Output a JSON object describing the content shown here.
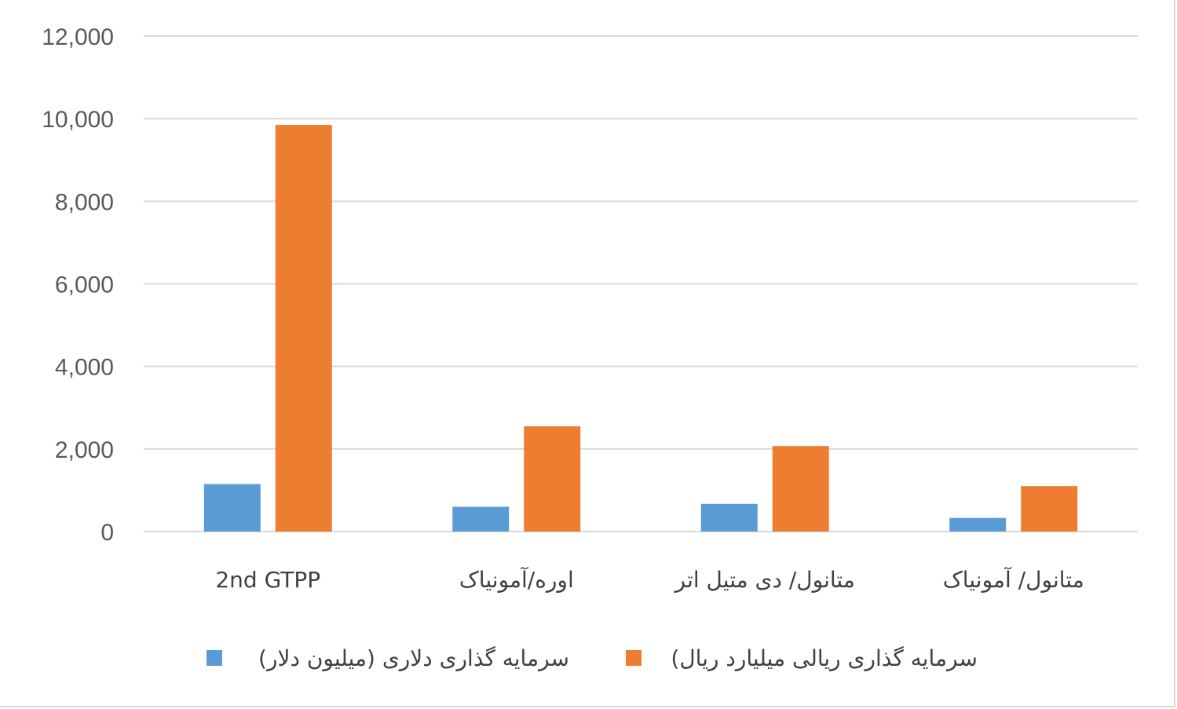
{
  "chart_data": {
    "type": "bar",
    "categories": [
      "2nd  GTPP",
      "اوره/آمونیاک",
      "متانول/ دی متیل اتر",
      "متانول/ آمونیاک"
    ],
    "series": [
      {
        "name": "سرمایه گذاری دلاری (میلیون دلار)",
        "color": "#5b9bd5",
        "values": [
          1150,
          600,
          670,
          330
        ]
      },
      {
        "name": "سرمایه گذاری ریالی میلیارد ریال)",
        "color": "#ed7d31",
        "values": [
          9850,
          2550,
          2070,
          1100
        ]
      }
    ],
    "ylim": [
      0,
      12000
    ],
    "yticks": [
      0,
      2000,
      4000,
      6000,
      8000,
      10000,
      12000
    ],
    "ytick_labels": [
      "0",
      "2,000",
      "4,000",
      "6,000",
      "8,000",
      "10,000",
      "12,000"
    ],
    "grid": true,
    "legend_position": "bottom",
    "title": "",
    "xlabel": "",
    "ylabel": ""
  }
}
